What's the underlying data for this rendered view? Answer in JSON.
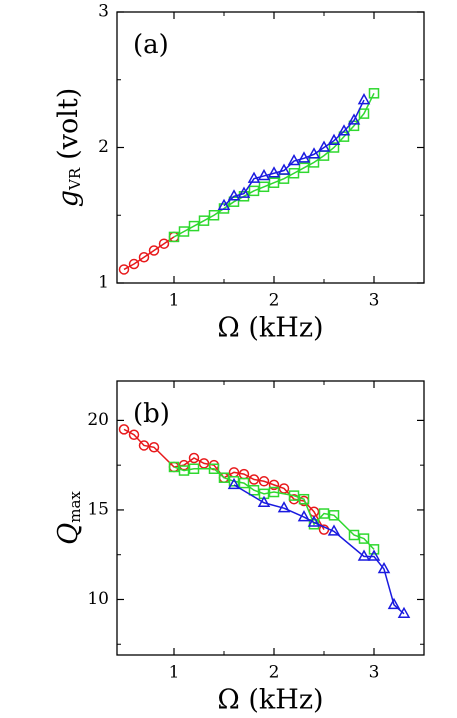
{
  "chart_data": [
    {
      "type": "line",
      "annotation": "(a)",
      "xlabel": "Ω (kHz)",
      "ylabel": {
        "symbol": "g",
        "subscript": "VR",
        "unit": "(volt)"
      },
      "xlim": [
        0.43,
        3.5
      ],
      "ylim": [
        1,
        3
      ],
      "xticks": [
        1,
        2,
        3
      ],
      "yticks": [
        1,
        2,
        3
      ],
      "xminor": [
        1.5,
        2.5
      ],
      "yminor": [
        1.5,
        2.5
      ],
      "series": [
        {
          "color": "#e8191b",
          "marker": "circle",
          "x": [
            0.5,
            0.6,
            0.7,
            0.8,
            0.9,
            1.0
          ],
          "values": [
            1.1,
            1.14,
            1.19,
            1.24,
            1.29,
            1.34
          ]
        },
        {
          "color": "#2fd82f",
          "marker": "square",
          "x": [
            1.0,
            1.1,
            1.2,
            1.3,
            1.4,
            1.5,
            1.6,
            1.7,
            1.8,
            1.9,
            2.0,
            2.1,
            2.2,
            2.3,
            2.4,
            2.5,
            2.6,
            2.7,
            2.8,
            2.9,
            3.0
          ],
          "values": [
            1.34,
            1.38,
            1.42,
            1.46,
            1.5,
            1.55,
            1.6,
            1.64,
            1.68,
            1.71,
            1.74,
            1.77,
            1.81,
            1.85,
            1.89,
            1.94,
            2.0,
            2.08,
            2.16,
            2.25,
            2.4
          ]
        },
        {
          "color": "#1a1adf",
          "marker": "triangle",
          "x": [
            1.5,
            1.6,
            1.7,
            1.8,
            1.9,
            2.0,
            2.1,
            2.2,
            2.3,
            2.4,
            2.5,
            2.6,
            2.7,
            2.8,
            2.9
          ],
          "values": [
            1.57,
            1.64,
            1.66,
            1.77,
            1.79,
            1.81,
            1.83,
            1.9,
            1.92,
            1.95,
            2.0,
            2.05,
            2.12,
            2.2,
            2.35
          ]
        }
      ]
    },
    {
      "type": "line",
      "annotation": "(b)",
      "xlabel": "Ω (kHz)",
      "ylabel": {
        "symbol": "Q",
        "subscript": "max"
      },
      "xlim": [
        0.43,
        3.5
      ],
      "ylim": [
        6.9,
        22.2
      ],
      "xticks": [
        1,
        2,
        3
      ],
      "yticks": [
        10,
        15,
        20
      ],
      "xminor": [
        1.5,
        2.5
      ],
      "yminor": [
        7.5,
        12.5,
        17.5
      ],
      "series": [
        {
          "color": "#e8191b",
          "marker": "circle",
          "x": [
            0.5,
            0.6,
            0.7,
            0.8,
            1.0,
            1.1,
            1.2,
            1.3,
            1.4,
            1.5,
            1.6,
            1.7,
            1.8,
            1.9,
            2.0,
            2.1,
            2.2,
            2.3,
            2.4,
            2.5
          ],
          "values": [
            19.5,
            19.2,
            18.6,
            18.5,
            17.4,
            17.5,
            17.9,
            17.6,
            17.5,
            16.8,
            17.1,
            17.0,
            16.7,
            16.6,
            16.4,
            16.2,
            15.6,
            15.5,
            14.9,
            13.9
          ]
        },
        {
          "color": "#2fd82f",
          "marker": "square",
          "x": [
            1.0,
            1.1,
            1.2,
            1.4,
            1.5,
            1.6,
            1.7,
            1.8,
            1.9,
            2.0,
            2.2,
            2.3,
            2.4,
            2.5,
            2.6,
            2.8,
            2.9,
            3.0
          ],
          "values": [
            17.4,
            17.2,
            17.3,
            17.3,
            16.8,
            16.6,
            16.5,
            16.1,
            15.9,
            16.0,
            15.8,
            15.6,
            14.2,
            14.8,
            14.7,
            13.6,
            13.4,
            12.8
          ]
        },
        {
          "color": "#1a1adf",
          "marker": "triangle",
          "x": [
            1.6,
            1.9,
            2.1,
            2.3,
            2.4,
            2.6,
            2.9,
            3.0,
            3.1,
            3.2,
            3.3
          ],
          "values": [
            16.4,
            15.4,
            15.1,
            14.6,
            14.3,
            13.8,
            12.4,
            12.4,
            11.7,
            9.7,
            9.2
          ]
        }
      ]
    }
  ]
}
